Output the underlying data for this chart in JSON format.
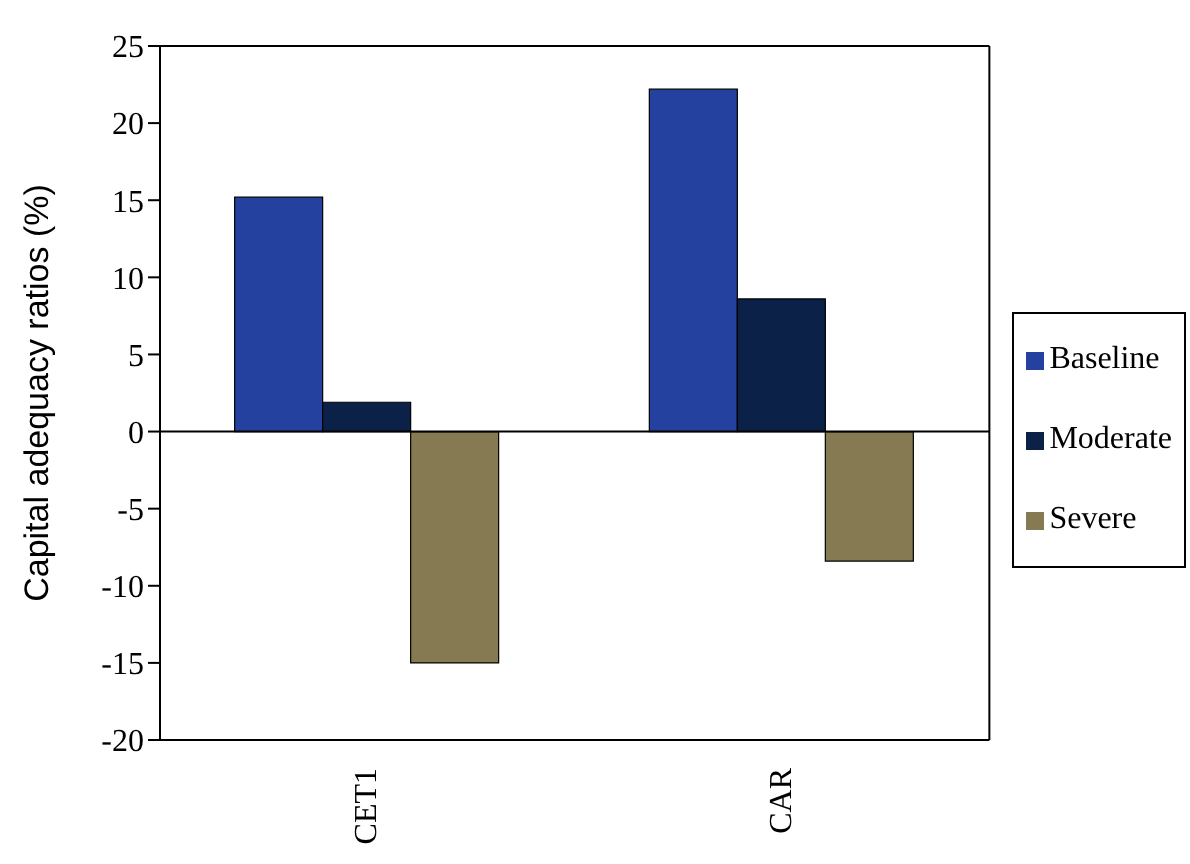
{
  "chart_data": {
    "type": "bar",
    "ylabel": "Capital adequacy ratios (%)",
    "categories": [
      "CET1",
      "CAR"
    ],
    "series": [
      {
        "name": "Baseline",
        "color": "#2541a0",
        "values": [
          15.2,
          22.2
        ]
      },
      {
        "name": "Moderate",
        "color": "#0b2148",
        "values": [
          1.9,
          8.6
        ]
      },
      {
        "name": "Severe",
        "color": "#857a52",
        "values": [
          -15,
          -8.4
        ]
      }
    ],
    "ylim": [
      -20,
      25
    ],
    "yticks": [
      -20,
      -15,
      -10,
      -5,
      0,
      5,
      10,
      15,
      20,
      25
    ],
    "legend": "right"
  }
}
